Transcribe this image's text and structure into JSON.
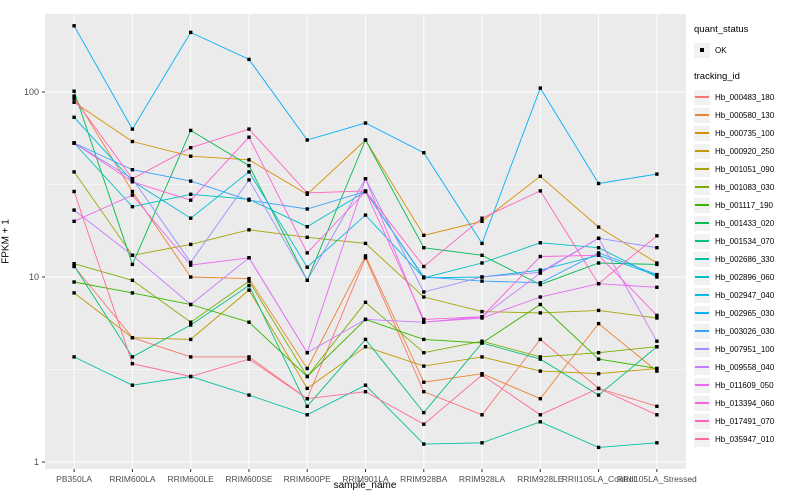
{
  "chart_data": {
    "type": "line",
    "title": "",
    "xlabel": "sample_name",
    "ylabel": "FPKM + 1",
    "y_scale": "log10",
    "y_ticks": [
      1,
      10,
      100
    ],
    "y_minor_ticks": [
      3.162,
      31.62
    ],
    "ylim": [
      0.78,
      292
    ],
    "grid": "on",
    "panel_color": "#EBEBEB",
    "gridline_color": "#FFFFFF",
    "marker": "black-square",
    "marker_color": "#000000",
    "categories": [
      "PB350LA",
      "RRIM600LA",
      "RRIM600LE",
      "RRIM600SE",
      "RRIM600PE",
      "RRIM901LA",
      "RRIM928BA",
      "RRIM928LA",
      "RRIM928LE",
      "RRII105LA_Control",
      "RRII105LA_Stressed"
    ],
    "series": [
      {
        "name": "Hb_000483_180",
        "color": "#F8766D",
        "values": [
          11.4,
          4.7,
          3.7,
          3.7,
          2.2,
          12.7,
          2.4,
          1.8,
          4.6,
          2.5,
          2.0
        ]
      },
      {
        "name": "Hb_000580_130",
        "color": "#EA8331",
        "values": [
          95,
          29,
          10,
          9.8,
          3.2,
          13,
          2.7,
          3.0,
          2.2,
          5.6,
          3.1
        ]
      },
      {
        "name": "Hb_000735_100",
        "color": "#D89000",
        "values": [
          88,
          54,
          45,
          43,
          28,
          55,
          16.8,
          20,
          35,
          18.6,
          11.9
        ]
      },
      {
        "name": "Hb_000920_250",
        "color": "#C09B00",
        "values": [
          8.2,
          4.7,
          4.6,
          8.5,
          2.5,
          4.2,
          3.3,
          3.7,
          3.1,
          3.0,
          3.2
        ]
      },
      {
        "name": "Hb_001051_090",
        "color": "#A3A500",
        "values": [
          37,
          13.1,
          15,
          18,
          16.4,
          15.2,
          7.8,
          6.5,
          6.4,
          6.6,
          6.0
        ]
      },
      {
        "name": "Hb_001083_030",
        "color": "#7CAE00",
        "values": [
          11.8,
          9.6,
          5.7,
          9.5,
          2.9,
          7.3,
          3.9,
          4.5,
          3.7,
          3.9,
          4.2
        ]
      },
      {
        "name": "Hb_001117_190",
        "color": "#39B600",
        "values": [
          9.4,
          8.2,
          7.1,
          5.7,
          2.9,
          5.9,
          4.6,
          4.4,
          7.1,
          3.6,
          3.2
        ]
      },
      {
        "name": "Hb_001433_020",
        "color": "#00BB4E",
        "values": [
          101,
          11.7,
          62,
          40,
          9.6,
          55,
          14.4,
          13.1,
          9.1,
          11.9,
          11.7
        ]
      },
      {
        "name": "Hb_001534_070",
        "color": "#00BF7D",
        "values": [
          11.5,
          3.7,
          5.5,
          9.0,
          2.0,
          4.6,
          1.85,
          4.4,
          3.6,
          2.3,
          4.2
        ]
      },
      {
        "name": "Hb_002686_330",
        "color": "#00C1A3",
        "values": [
          3.7,
          2.6,
          2.9,
          2.3,
          1.8,
          2.6,
          1.25,
          1.27,
          1.65,
          1.2,
          1.27
        ]
      },
      {
        "name": "Hb_002896_060",
        "color": "#00BFC4",
        "values": [
          53,
          24,
          28,
          26.3,
          18.7,
          29,
          9.9,
          11.9,
          15.3,
          14.4,
          10
        ]
      },
      {
        "name": "Hb_002947_040",
        "color": "#00BAE0",
        "values": [
          73,
          33,
          20.8,
          37,
          11.3,
          21.6,
          9.9,
          10,
          10.9,
          13.1,
          10.2
        ]
      },
      {
        "name": "Hb_002965_030",
        "color": "#00B0F6",
        "values": [
          228,
          63,
          210,
          150,
          55,
          68,
          47,
          15.2,
          105,
          32,
          36
        ]
      },
      {
        "name": "Hb_003026_030",
        "color": "#35A2FF",
        "values": [
          53,
          38,
          33,
          26,
          23.3,
          29,
          10,
          9.5,
          9.3,
          13.5,
          10.3
        ]
      },
      {
        "name": "Hb_007951_100",
        "color": "#9590FF",
        "values": [
          53,
          34,
          12,
          33.5,
          9.6,
          34,
          8.3,
          10,
          10.6,
          16.2,
          14.4
        ]
      },
      {
        "name": "Hb_009558_040",
        "color": "#C77CFF",
        "values": [
          23,
          13.1,
          7.1,
          12.7,
          3.9,
          5.9,
          5.7,
          6.1,
          10.5,
          16.2,
          4.5
        ]
      },
      {
        "name": "Hb_011609_050",
        "color": "#E76BF3",
        "values": [
          20,
          27.7,
          11.6,
          12.7,
          3.9,
          34,
          5.7,
          6.0,
          7.8,
          9.2,
          8.8
        ]
      },
      {
        "name": "Hb_013394_060",
        "color": "#FA62DB",
        "values": [
          53,
          32.7,
          26,
          57,
          13.5,
          29,
          5.9,
          6.1,
          12.9,
          13.1,
          6.2
        ]
      },
      {
        "name": "Hb_017491_070",
        "color": "#FF62BC",
        "values": [
          92,
          34,
          50,
          63,
          28.5,
          29.2,
          11.4,
          20.8,
          29.2,
          9.2,
          16.7
        ]
      },
      {
        "name": "Hb_035947_010",
        "color": "#FF6A98",
        "values": [
          29,
          3.4,
          2.9,
          3.6,
          2.2,
          2.4,
          1.6,
          2.95,
          1.8,
          2.5,
          1.8
        ]
      }
    ],
    "legend_position": "right"
  },
  "legend": {
    "quant_status": {
      "title": "quant_status",
      "items": [
        {
          "label": "OK"
        }
      ]
    },
    "tracking_id": {
      "title": "tracking_id"
    }
  },
  "axes": {
    "x_title": "sample_name",
    "y_title": "FPKM + 1",
    "tick_color": "#4D4D4D"
  }
}
